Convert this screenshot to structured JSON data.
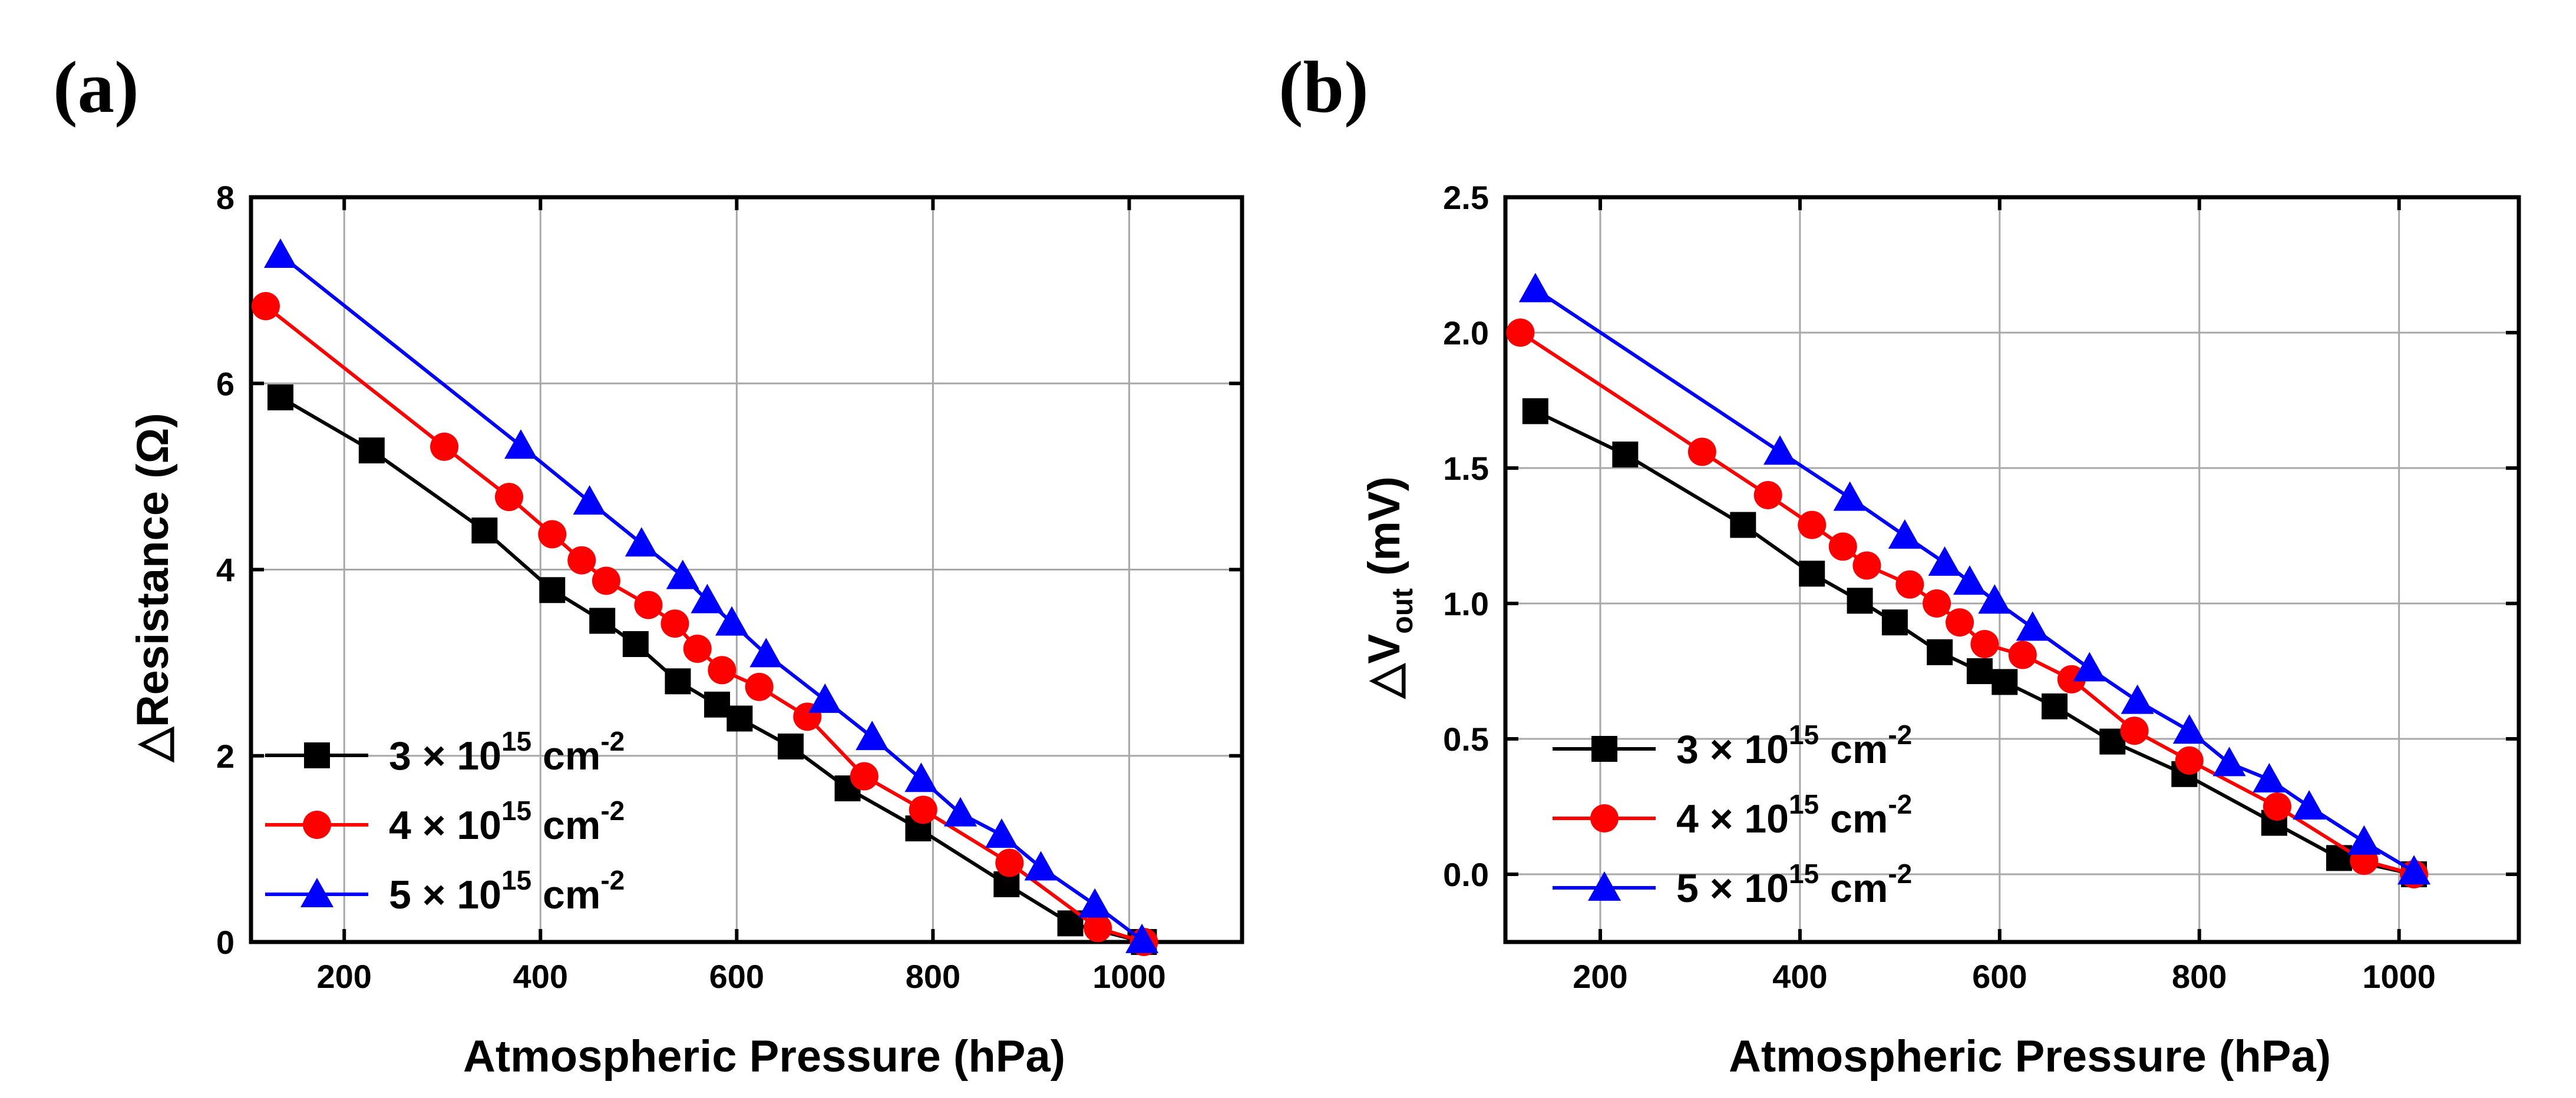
{
  "chart_data": [
    {
      "panel_label": "(a)",
      "type": "line",
      "xlabel": "Atmospheric Pressure (hPa)",
      "ylabel": "△Resistance (Ω)",
      "xlim": [
        105,
        1115
      ],
      "ylim": [
        0,
        8
      ],
      "xticks": [
        200,
        400,
        600,
        800,
        1000
      ],
      "yticks": [
        0,
        2,
        4,
        6,
        8
      ],
      "ytick_labels": [
        "0",
        "2",
        "4",
        "6",
        "8"
      ],
      "grid": true,
      "legend_position": "bottom-left",
      "series": [
        {
          "name_base": "3 × 10",
          "name_exp": "15",
          "name_unit": " cm",
          "name_unit_exp": "-2",
          "color": "#000000",
          "marker": "square",
          "x": [
            135,
            228,
            343,
            412,
            463,
            497,
            540,
            580,
            603,
            655,
            713,
            785,
            875,
            940,
            1015
          ],
          "y": [
            5.85,
            5.28,
            4.42,
            3.78,
            3.45,
            3.2,
            2.8,
            2.55,
            2.4,
            2.1,
            1.65,
            1.22,
            0.62,
            0.2,
            0.0
          ]
        },
        {
          "name_base": "4 × 10",
          "name_exp": "15",
          "name_unit": " cm",
          "name_unit_exp": "-2",
          "color": "#ff0000",
          "marker": "circle",
          "x": [
            120,
            302,
            368,
            412,
            442,
            467,
            510,
            537,
            560,
            585,
            623,
            672,
            730,
            790,
            878,
            968,
            1015
          ],
          "y": [
            6.83,
            5.32,
            4.78,
            4.38,
            4.1,
            3.88,
            3.62,
            3.42,
            3.15,
            2.92,
            2.74,
            2.42,
            1.78,
            1.42,
            0.85,
            0.15,
            0.0
          ]
        },
        {
          "name_base": "5 × 10",
          "name_exp": "15",
          "name_unit": " cm",
          "name_unit_exp": "-2",
          "color": "#0000ff",
          "marker": "triangle",
          "x": [
            135,
            380,
            450,
            503,
            545,
            570,
            595,
            630,
            690,
            738,
            788,
            828,
            870,
            910,
            965,
            1013
          ],
          "y": [
            7.38,
            5.33,
            4.73,
            4.28,
            3.93,
            3.67,
            3.43,
            3.09,
            2.6,
            2.2,
            1.75,
            1.38,
            1.15,
            0.8,
            0.4,
            0.02
          ]
        }
      ]
    },
    {
      "panel_label": "(b)",
      "type": "line",
      "xlabel": "Atmospheric Pressure (hPa)",
      "ylabel_prefix": "△V",
      "ylabel_sub": "out",
      "ylabel_suffix": " (mV)",
      "xlim": [
        105,
        1120
      ],
      "ylim": [
        -0.25,
        2.5
      ],
      "xticks": [
        200,
        400,
        600,
        800,
        1000
      ],
      "yticks": [
        0,
        0.5,
        1,
        1.5,
        2,
        2.5
      ],
      "ytick_labels": [
        "0.0",
        "0.5",
        "1.0",
        "1.5",
        "2.0",
        "2.5"
      ],
      "grid": true,
      "legend_position": "bottom-left",
      "series": [
        {
          "name_base": "3 × 10",
          "name_exp": "15",
          "name_unit": " cm",
          "name_unit_exp": "-2",
          "color": "#000000",
          "marker": "square",
          "x": [
            135,
            225,
            343,
            412,
            460,
            495,
            540,
            580,
            605,
            655,
            713,
            785,
            875,
            940,
            1015
          ],
          "y": [
            1.71,
            1.55,
            1.29,
            1.11,
            1.01,
            0.93,
            0.82,
            0.75,
            0.71,
            0.62,
            0.49,
            0.37,
            0.19,
            0.06,
            0.0
          ]
        },
        {
          "name_base": "4 × 10",
          "name_exp": "15",
          "name_unit": " cm",
          "name_unit_exp": "-2",
          "color": "#ff0000",
          "marker": "circle",
          "x": [
            120,
            302,
            368,
            412,
            443,
            467,
            510,
            537,
            560,
            585,
            623,
            672,
            735,
            790,
            878,
            965,
            1015
          ],
          "y": [
            2.0,
            1.56,
            1.4,
            1.29,
            1.21,
            1.14,
            1.07,
            1.0,
            0.93,
            0.85,
            0.81,
            0.72,
            0.53,
            0.42,
            0.25,
            0.05,
            0.0
          ]
        },
        {
          "name_base": "5 × 10",
          "name_exp": "15",
          "name_unit": " cm",
          "name_unit_exp": "-2",
          "color": "#0000ff",
          "marker": "triangle",
          "x": [
            135,
            380,
            450,
            505,
            545,
            570,
            595,
            633,
            690,
            738,
            790,
            830,
            870,
            910,
            965,
            1015
          ],
          "y": [
            2.16,
            1.56,
            1.39,
            1.25,
            1.15,
            1.08,
            1.01,
            0.91,
            0.76,
            0.64,
            0.53,
            0.41,
            0.35,
            0.25,
            0.12,
            0.01
          ]
        }
      ]
    }
  ]
}
